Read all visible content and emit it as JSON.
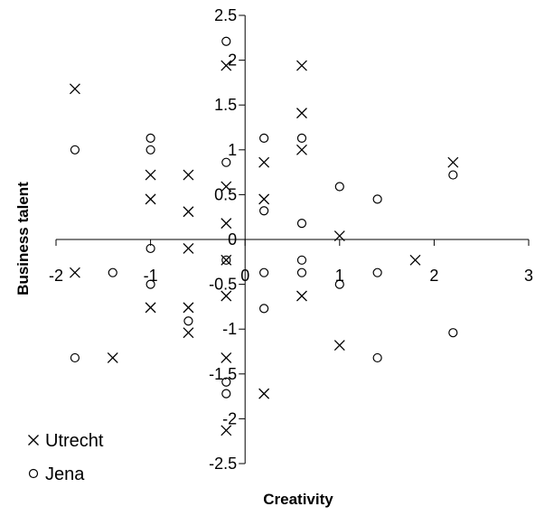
{
  "chart_data": {
    "type": "scatter",
    "xlabel": "Creativity",
    "ylabel": "Business talent",
    "xlim": [
      -2,
      3
    ],
    "ylim": [
      -2.5,
      2.5
    ],
    "x_ticks": [
      -2,
      -1,
      0,
      1,
      2,
      3
    ],
    "y_ticks": [
      -2.5,
      -2,
      -1.5,
      -1,
      -0.5,
      0,
      0.5,
      1,
      1.5,
      2,
      2.5
    ],
    "x_tick_labels": [
      "-2",
      "-1",
      "0",
      "1",
      "2",
      "3"
    ],
    "y_tick_labels": [
      "-2.5",
      "-2",
      "-1.5",
      "-1",
      "-0.5",
      "0",
      "0.5",
      "1",
      "1.5",
      "2",
      "2.5"
    ],
    "grid": false,
    "legend_position": "bottom-left",
    "series": [
      {
        "name": "Utrecht",
        "marker": "x",
        "color": "#000000",
        "points": [
          [
            -1.8,
            1.68
          ],
          [
            -1.8,
            -0.37
          ],
          [
            -1.4,
            -1.32
          ],
          [
            -1.0,
            0.72
          ],
          [
            -1.0,
            0.45
          ],
          [
            -1.0,
            -0.76
          ],
          [
            -0.6,
            0.72
          ],
          [
            -0.6,
            0.31
          ],
          [
            -0.6,
            -0.1
          ],
          [
            -0.6,
            -0.76
          ],
          [
            -0.6,
            -1.04
          ],
          [
            -0.2,
            1.94
          ],
          [
            -0.2,
            0.59
          ],
          [
            -0.2,
            0.18
          ],
          [
            -0.2,
            -0.23
          ],
          [
            -0.2,
            -0.63
          ],
          [
            -0.2,
            -1.32
          ],
          [
            -0.2,
            -2.13
          ],
          [
            0.2,
            0.86
          ],
          [
            0.2,
            0.45
          ],
          [
            0.2,
            -1.72
          ],
          [
            0.6,
            1.94
          ],
          [
            0.6,
            1.41
          ],
          [
            0.6,
            1.0
          ],
          [
            0.6,
            -0.63
          ],
          [
            1.0,
            0.04
          ],
          [
            1.0,
            -1.18
          ],
          [
            1.8,
            -0.23
          ],
          [
            2.2,
            0.86
          ]
        ]
      },
      {
        "name": "Jena",
        "marker": "o",
        "color": "#000000",
        "points": [
          [
            -1.8,
            1.0
          ],
          [
            -1.8,
            -1.32
          ],
          [
            -1.4,
            -0.37
          ],
          [
            -1.0,
            1.13
          ],
          [
            -1.0,
            1.0
          ],
          [
            -1.0,
            -0.1
          ],
          [
            -1.0,
            -0.5
          ],
          [
            -0.6,
            -0.91
          ],
          [
            -0.2,
            2.21
          ],
          [
            -0.2,
            0.86
          ],
          [
            -0.2,
            -0.23
          ],
          [
            -0.2,
            -1.59
          ],
          [
            -0.2,
            -1.72
          ],
          [
            0.2,
            1.13
          ],
          [
            0.2,
            0.32
          ],
          [
            0.2,
            -0.37
          ],
          [
            0.2,
            -0.77
          ],
          [
            0.6,
            1.13
          ],
          [
            0.6,
            0.18
          ],
          [
            0.6,
            -0.23
          ],
          [
            0.6,
            -0.37
          ],
          [
            1.0,
            0.59
          ],
          [
            1.0,
            -0.5
          ],
          [
            1.4,
            0.45
          ],
          [
            1.4,
            -0.37
          ],
          [
            1.4,
            -1.32
          ],
          [
            2.2,
            0.72
          ],
          [
            2.2,
            -1.04
          ]
        ]
      }
    ]
  }
}
